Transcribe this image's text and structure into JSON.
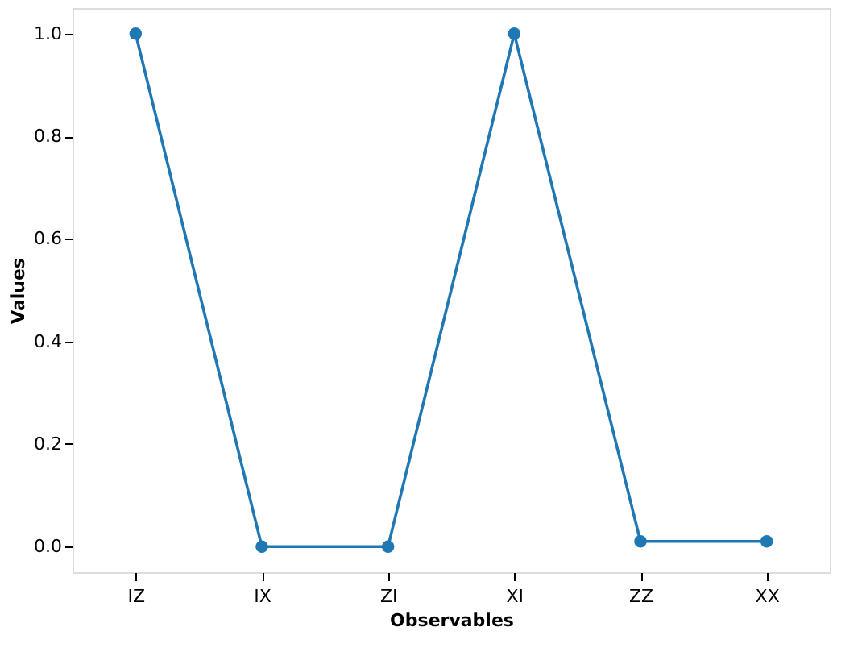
{
  "chart_data": {
    "type": "line",
    "xlabel": "Observables",
    "ylabel": "Values",
    "categories": [
      "IZ",
      "IX",
      "ZI",
      "XI",
      "ZZ",
      "XX"
    ],
    "series": [
      {
        "color": "#1f77b4",
        "values": [
          1.0,
          0.0,
          0.0,
          1.0,
          0.01,
          0.01
        ]
      }
    ],
    "ylim": [
      -0.05,
      1.05
    ],
    "yticks": [
      {
        "value": 0,
        "label": "0.0"
      },
      {
        "value": 0.2,
        "label": "0.2"
      },
      {
        "value": 0.4,
        "label": "0.4"
      },
      {
        "value": 0.6,
        "label": "0.6"
      },
      {
        "value": 0.8,
        "label": "0.8"
      },
      {
        "value": 1,
        "label": "1.0"
      }
    ],
    "marker": "circle",
    "line_style": "solid",
    "grid": false
  }
}
